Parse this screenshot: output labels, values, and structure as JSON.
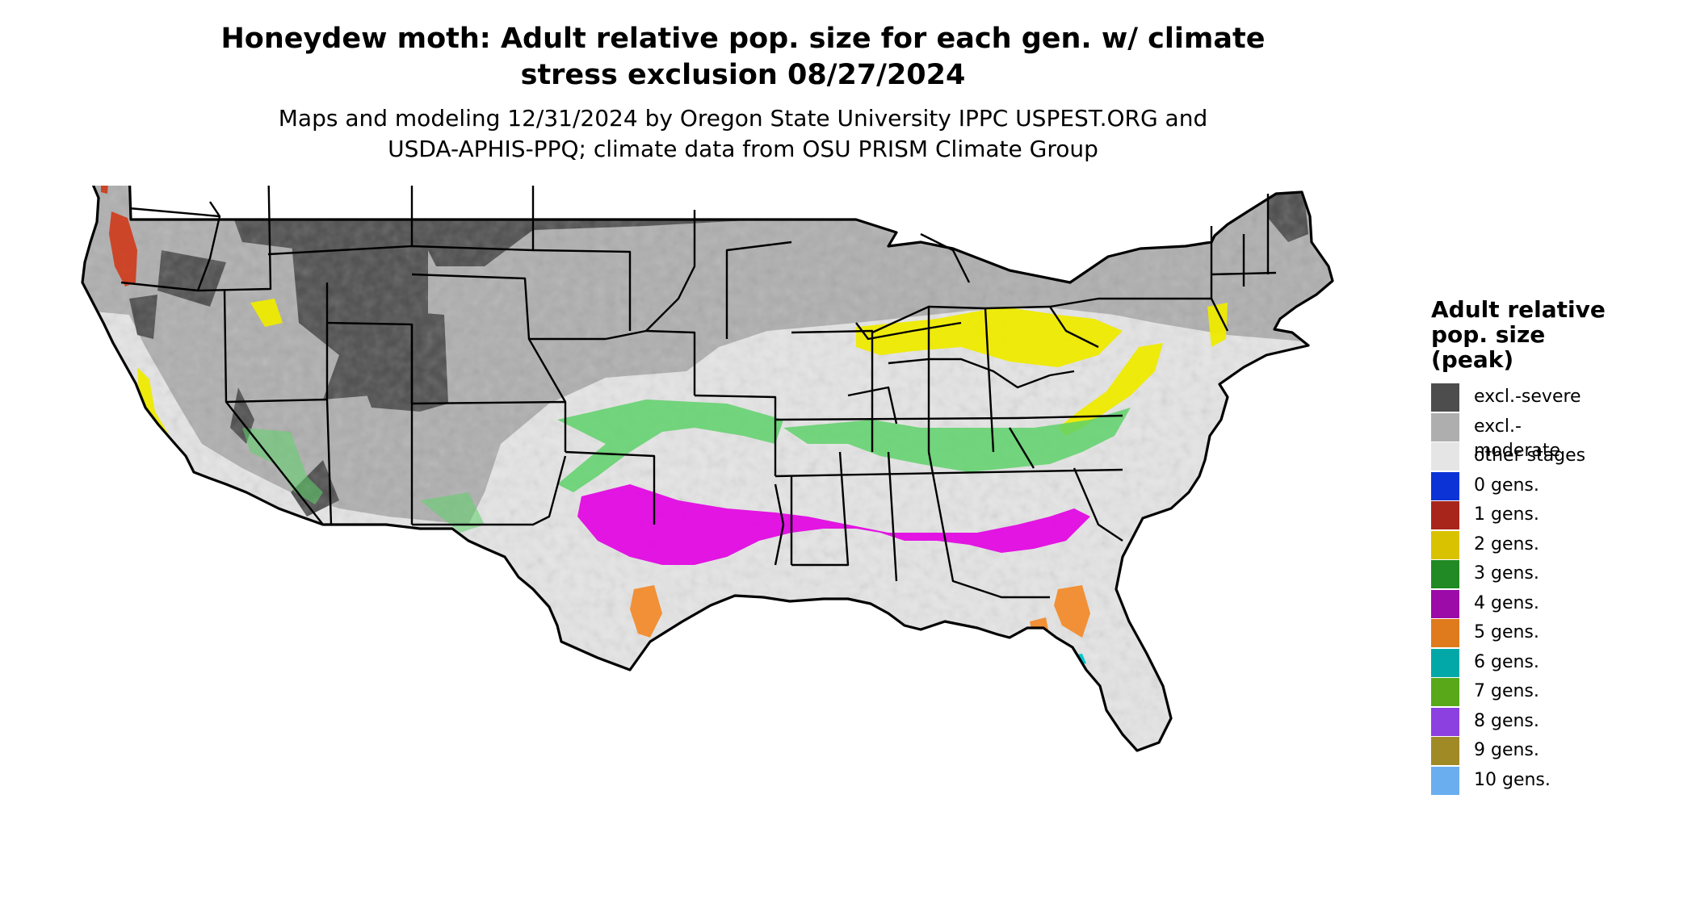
{
  "title": {
    "line1": "Honeydew moth: Adult relative pop. size for each gen. w/ climate",
    "line2": "stress exclusion 08/27/2024"
  },
  "subtitle": {
    "line1": "Maps and modeling 12/31/2024 by Oregon State University IPPC USPEST.ORG and",
    "line2": "USDA-APHIS-PPQ; climate data from OSU PRISM Climate Group"
  },
  "legend": {
    "title": [
      "Adult relative",
      "pop. size",
      "(peak)"
    ],
    "items": [
      {
        "label": "excl.-severe",
        "color": "#4d4d4d"
      },
      {
        "label": "excl.-moderate",
        "color": "#aeaeae"
      },
      {
        "label": "other stages",
        "color": "#e5e5e5"
      },
      {
        "label": "0 gens.",
        "color": "#0b33d6"
      },
      {
        "label": "1 gens.",
        "color": "#a8251b"
      },
      {
        "label": "2 gens.",
        "color": "#d9c200"
      },
      {
        "label": "3 gens.",
        "color": "#218a24"
      },
      {
        "label": "4 gens.",
        "color": "#9c0aa7"
      },
      {
        "label": "5 gens.",
        "color": "#df7a1d"
      },
      {
        "label": "6 gens.",
        "color": "#02a8a8"
      },
      {
        "label": "7 gens.",
        "color": "#58a819"
      },
      {
        "label": "8 gens.",
        "color": "#8c40e0"
      },
      {
        "label": "9 gens.",
        "color": "#a08a25"
      },
      {
        "label": "10 gens.",
        "color": "#6aaef0"
      }
    ]
  }
}
